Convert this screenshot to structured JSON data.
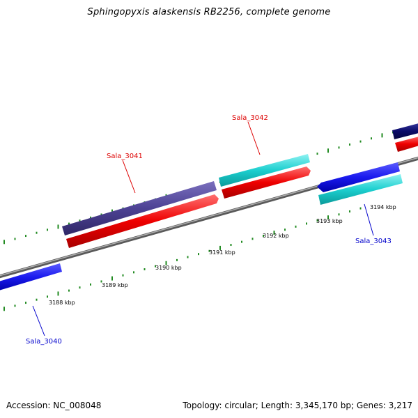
{
  "title": "Sphingopyxis alaskensis RB2256, complete genome",
  "footer": {
    "accession": "Accession: NC_008048",
    "summary": "Topology: circular; Length: 3,345,170 bp; Genes: 3,217"
  },
  "scale_labels": [
    "3188 kbp",
    "3189 kbp",
    "3190 kbp",
    "3191 kbp",
    "3192 kbp",
    "3193 kbp",
    "3194 kbp"
  ],
  "gene_labels": [
    {
      "id": "Sala_3040",
      "color": "#0000cc"
    },
    {
      "id": "Sala_3041",
      "color": "#dd0000"
    },
    {
      "id": "Sala_3042",
      "color": "#dd0000"
    },
    {
      "id": "Sala_3043",
      "color": "#0000cc"
    }
  ],
  "colors": {
    "backbone": "#888888",
    "gene_cds_blue": "#1a1aee",
    "gene_cds_purple": "#4d4294",
    "gene_cds_teal": "#1ccfcf",
    "gene_red": "#ee0000",
    "gene_navy": "#0b0b6a",
    "tick": "#228b22"
  }
}
